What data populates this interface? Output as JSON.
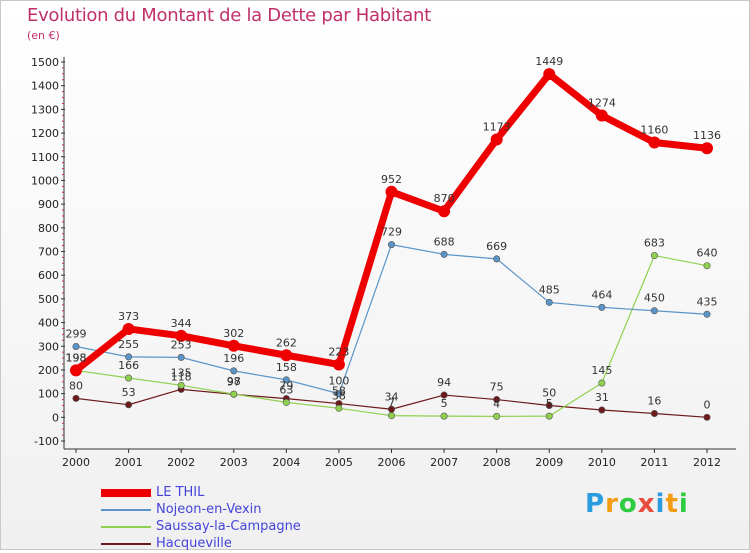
{
  "chart_data": {
    "type": "line",
    "title": "Evolution du Montant de la Dette par Habitant",
    "subtitle": "(en €)",
    "x": [
      "2000",
      "2001",
      "2002",
      "2003",
      "2004",
      "2005",
      "2006",
      "2007",
      "2008",
      "2009",
      "2010",
      "2011",
      "2012"
    ],
    "ylim": [
      -100,
      1500
    ],
    "yticks": [
      -100,
      0,
      100,
      200,
      300,
      400,
      500,
      600,
      700,
      800,
      900,
      1000,
      1100,
      1200,
      1300,
      1400,
      1500
    ],
    "grid": false,
    "legend_position": "bottom-left",
    "series": [
      {
        "name": "LE THIL",
        "color": "#ee0000",
        "values": [
          198,
          373,
          344,
          302,
          262,
          223,
          952,
          870,
          1173,
          1449,
          1274,
          1160,
          1136
        ]
      },
      {
        "name": "Nojeon-en-Vexin",
        "color": "#5b95c8",
        "values": [
          299,
          255,
          253,
          196,
          158,
          100,
          729,
          688,
          669,
          485,
          464,
          450,
          435
        ]
      },
      {
        "name": "Saussay-la-Campagne",
        "color": "#8fd14f",
        "values": [
          198,
          166,
          135,
          98,
          63,
          38,
          7,
          5,
          4,
          5,
          145,
          683,
          640
        ]
      },
      {
        "name": "Hacqueville",
        "color": "#6e1a1a",
        "values": [
          80,
          53,
          118,
          97,
          79,
          58,
          34,
          94,
          75,
          50,
          31,
          16,
          0
        ]
      }
    ]
  },
  "logo": {
    "letters": [
      "P",
      "r",
      "o",
      "x",
      "i",
      "t",
      "i"
    ],
    "colors": [
      "#2a9de0",
      "#f39c12",
      "#2ecc40",
      "#e74c3c",
      "#2a9de0",
      "#f39c12",
      "#2ecc40"
    ]
  }
}
